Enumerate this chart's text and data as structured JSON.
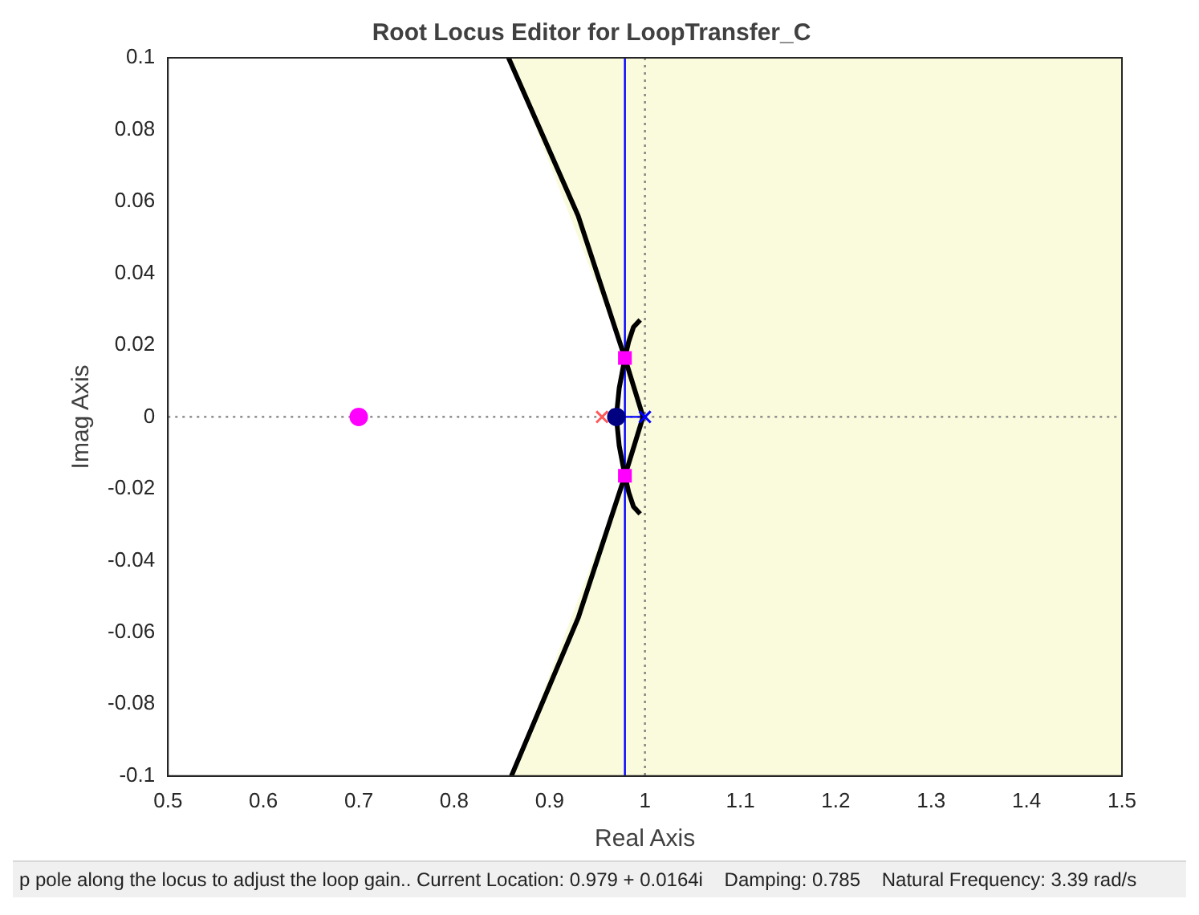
{
  "chart_data": {
    "type": "line",
    "title": "Root Locus Editor for LoopTransfer_C",
    "xlabel": "Real Axis",
    "ylabel": "Imag Axis",
    "xlim": [
      0.5,
      1.5
    ],
    "xticks": [
      0.5,
      0.6,
      0.7,
      0.8,
      0.9,
      1,
      1.1,
      1.2,
      1.3,
      1.4,
      1.5
    ],
    "ylim": [
      -0.1,
      0.1
    ],
    "yticks": [
      -0.1,
      -0.08,
      -0.06,
      -0.04,
      -0.02,
      0,
      0.02,
      0.04,
      0.06,
      0.08,
      0.1
    ],
    "grid": false,
    "legend": false,
    "series": [
      {
        "type": "area",
        "color": "#fafadc",
        "x": [
          1.5,
          0.857,
          0.979,
          0.975,
          0.979,
          0.86,
          1.5
        ],
        "values": [
          0.1,
          0.1,
          0.0164,
          0,
          -0.0164,
          -0.1,
          -0.1
        ]
      },
      {
        "color": "#000000",
        "x": [
          0.998,
          0.979,
          0.93,
          0.857
        ],
        "values": [
          0,
          0.0164,
          0.056,
          0.1
        ]
      },
      {
        "color": "#000000",
        "x": [
          0.998,
          0.979,
          0.93,
          0.86
        ],
        "values": [
          0,
          -0.0164,
          -0.056,
          -0.1
        ]
      },
      {
        "color": "#000000",
        "x": [
          0.995,
          0.988,
          0.983,
          0.979,
          0.973,
          0.97
        ],
        "values": [
          0.027,
          0.025,
          0.021,
          0.0164,
          0.008,
          0
        ]
      },
      {
        "color": "#000000",
        "x": [
          0.995,
          0.988,
          0.983,
          0.979,
          0.973,
          0.97
        ],
        "values": [
          -0.027,
          -0.025,
          -0.021,
          -0.0164,
          -0.008,
          0
        ]
      },
      {
        "color": "#0000ff",
        "x": [
          0.97,
          1.0
        ],
        "values": [
          0,
          0
        ]
      },
      {
        "type": "scatter",
        "marker": "cross",
        "color": "#ff5a5a",
        "x": [
          0.955
        ],
        "values": [
          0
        ]
      },
      {
        "type": "scatter",
        "marker": "cross",
        "color": "#0000ff",
        "x": [
          1.0
        ],
        "values": [
          0
        ]
      },
      {
        "type": "scatter",
        "marker": "circle",
        "color": "#000080",
        "x": [
          0.97
        ],
        "values": [
          0
        ]
      },
      {
        "type": "scatter",
        "marker": "circle",
        "color": "#ff00ff",
        "x": [
          0.7
        ],
        "values": [
          0
        ]
      },
      {
        "type": "scatter",
        "marker": "square",
        "color": "#ff00ff",
        "x": [
          0.979,
          0.979
        ],
        "values": [
          0.0164,
          -0.0164
        ]
      }
    ],
    "ref_lines": [
      {
        "axis": "y",
        "value": 0,
        "color": "#808080",
        "line_style": "dotted"
      },
      {
        "axis": "x",
        "value": 1,
        "color": "#808080",
        "line_style": "dotted"
      },
      {
        "axis": "x",
        "value": 0.979,
        "color": "#0000ff",
        "line_style": "solid"
      }
    ],
    "annotations": [
      "p pole along the locus to adjust the loop gain.. Current Location: 0.979 + 0.0164i    Damping: 0.785    Natural Frequency: 3.39 rad/s"
    ]
  }
}
